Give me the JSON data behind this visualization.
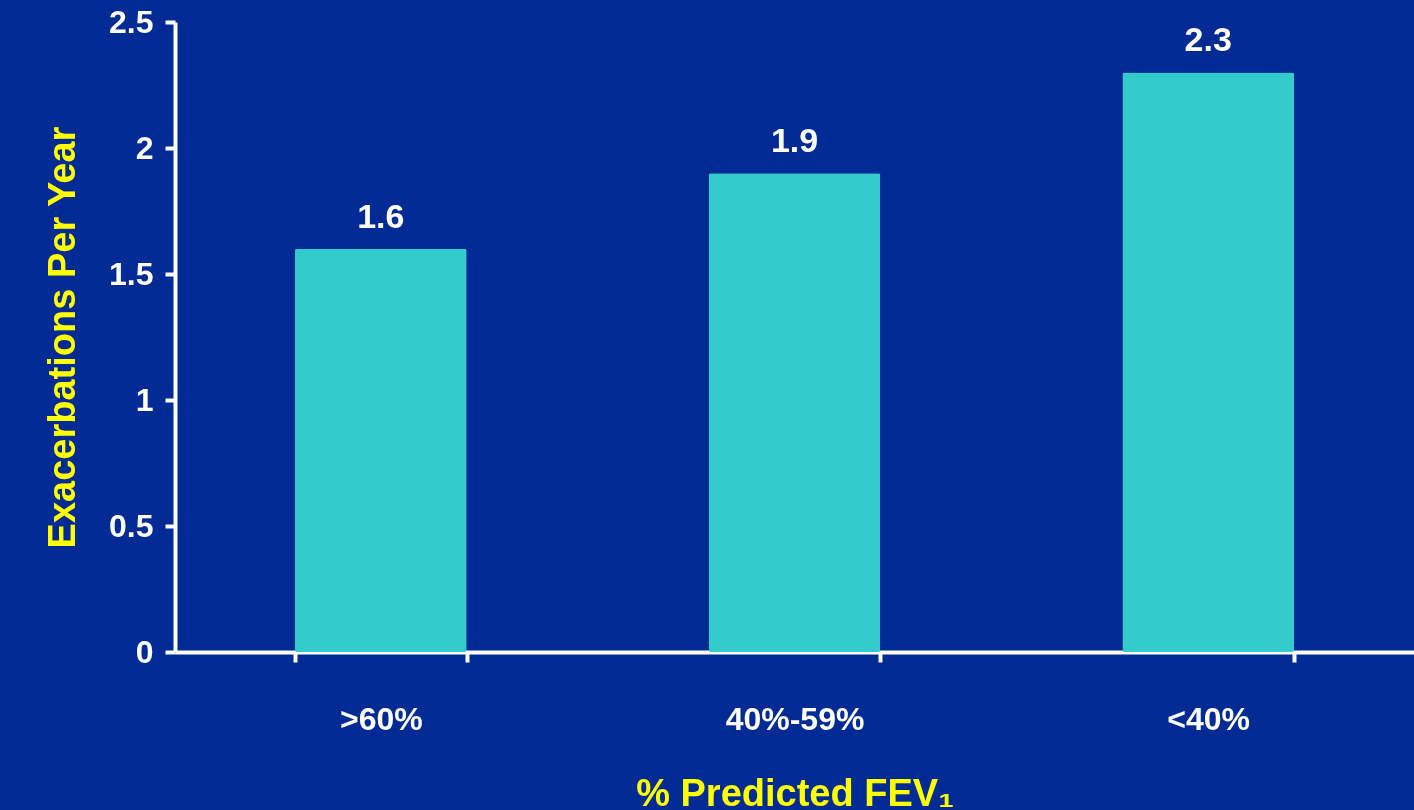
{
  "chart_data": {
    "type": "bar",
    "xlabel": "% Predicted FEV₁",
    "ylabel": "Exacerbations Per Year",
    "categories": [
      ">60%",
      "40%-59%",
      "<40%"
    ],
    "values": [
      1.6,
      1.9,
      2.3
    ],
    "color": "#33cccc",
    "ylim": [
      0,
      2.5
    ],
    "yticks": [
      0,
      0.5,
      1,
      1.5,
      2,
      2.5
    ],
    "grid": false,
    "data_labels": true
  }
}
